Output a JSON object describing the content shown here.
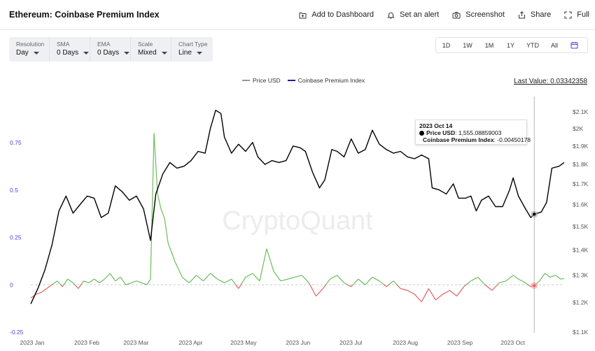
{
  "header": {
    "title": "Ethereum: Coinbase Premium Index",
    "actions": [
      {
        "label": "Add to Dashboard",
        "icon": "add-to-dashboard-icon"
      },
      {
        "label": "Set an alert",
        "icon": "bell-icon"
      },
      {
        "label": "Screenshot",
        "icon": "camera-icon"
      },
      {
        "label": "Share",
        "icon": "share-icon"
      },
      {
        "label": "Full",
        "icon": "fullscreen-icon"
      }
    ]
  },
  "controls": [
    {
      "label": "Resolution",
      "value": "Day"
    },
    {
      "label": "SMA",
      "value": "0 Days"
    },
    {
      "label": "EMA",
      "value": "0 Days"
    },
    {
      "label": "Scale",
      "value": "Mixed"
    },
    {
      "label": "Chart Type",
      "value": "Line"
    }
  ],
  "ranges": [
    "1D",
    "1W",
    "1M",
    "1Y",
    "YTD",
    "All"
  ],
  "last_value": "Last Value: 0.03342358",
  "watermark": "CryptoQuant",
  "tooltip": {
    "date": "2023 Oct 14",
    "price_label": "Price USD",
    "price_value": "1,555.08859003",
    "premium_label": "Coinbase Premium Index",
    "premium_value": "-0.00450178"
  },
  "colors": {
    "price": "#000000",
    "premium_legend": "#1a1aa6",
    "premium_positive": "#6dbb5a",
    "premium_negative": "#e06161",
    "left_axis": "#4c3fe0"
  },
  "chart_data": {
    "type": "line",
    "legend": [
      "Price USD",
      "Coinbase Premium Index"
    ],
    "legend_placement": "top-center",
    "grid": false,
    "y_left": {
      "ticks": [
        -0.25,
        0,
        0.25,
        0.5,
        0.75
      ],
      "tick_labels": [
        "-0.25",
        "0",
        "0.25",
        "0.5",
        "0.75"
      ],
      "range": [
        -0.25,
        1.0
      ]
    },
    "y_right": {
      "scale": "log",
      "ticks": [
        1100,
        1200,
        1300,
        1400,
        1500,
        1600,
        1700,
        1800,
        1900,
        2000,
        2100
      ],
      "tick_labels": [
        "$1.1K",
        "$1.2K",
        "$1.3K",
        "$1.4K",
        "$1.5K",
        "$1.6K",
        "$1.7K",
        "$1.8K",
        "$1.9K",
        "$2K",
        "$2.1K"
      ],
      "range": [
        1100,
        2150
      ]
    },
    "x_ticks": [
      "2023 Jan",
      "2023 Feb",
      "2023 Mar",
      "2023 Apr",
      "2023 May",
      "2023 Jun",
      "2023 Jul",
      "2023 Aug",
      "2023 Sep",
      "2023 Oct"
    ],
    "series": [
      {
        "name": "Price USD",
        "axis": "right",
        "points": [
          [
            "2023-01-01",
            1195
          ],
          [
            "2023-01-05",
            1250
          ],
          [
            "2023-01-09",
            1320
          ],
          [
            "2023-01-13",
            1420
          ],
          [
            "2023-01-17",
            1570
          ],
          [
            "2023-01-21",
            1640
          ],
          [
            "2023-01-25",
            1560
          ],
          [
            "2023-01-29",
            1600
          ],
          [
            "2023-02-02",
            1640
          ],
          [
            "2023-02-06",
            1630
          ],
          [
            "2023-02-10",
            1540
          ],
          [
            "2023-02-14",
            1560
          ],
          [
            "2023-02-18",
            1690
          ],
          [
            "2023-02-22",
            1660
          ],
          [
            "2023-02-26",
            1620
          ],
          [
            "2023-03-02",
            1640
          ],
          [
            "2023-03-06",
            1580
          ],
          [
            "2023-03-10",
            1440
          ],
          [
            "2023-03-13",
            1650
          ],
          [
            "2023-03-17",
            1750
          ],
          [
            "2023-03-21",
            1810
          ],
          [
            "2023-03-25",
            1780
          ],
          [
            "2023-03-29",
            1790
          ],
          [
            "2023-04-02",
            1820
          ],
          [
            "2023-04-06",
            1870
          ],
          [
            "2023-04-10",
            1860
          ],
          [
            "2023-04-13",
            2000
          ],
          [
            "2023-04-16",
            2110
          ],
          [
            "2023-04-19",
            2090
          ],
          [
            "2023-04-21",
            1950
          ],
          [
            "2023-04-25",
            1860
          ],
          [
            "2023-04-29",
            1910
          ],
          [
            "2023-05-03",
            1870
          ],
          [
            "2023-05-07",
            1920
          ],
          [
            "2023-05-10",
            1840
          ],
          [
            "2023-05-14",
            1800
          ],
          [
            "2023-05-18",
            1820
          ],
          [
            "2023-05-22",
            1810
          ],
          [
            "2023-05-26",
            1820
          ],
          [
            "2023-05-30",
            1900
          ],
          [
            "2023-06-03",
            1890
          ],
          [
            "2023-06-06",
            1870
          ],
          [
            "2023-06-10",
            1760
          ],
          [
            "2023-06-14",
            1680
          ],
          [
            "2023-06-17",
            1720
          ],
          [
            "2023-06-21",
            1880
          ],
          [
            "2023-06-24",
            1870
          ],
          [
            "2023-06-28",
            1840
          ],
          [
            "2023-07-02",
            1940
          ],
          [
            "2023-07-06",
            1860
          ],
          [
            "2023-07-10",
            1880
          ],
          [
            "2023-07-14",
            1990
          ],
          [
            "2023-07-18",
            1910
          ],
          [
            "2023-07-22",
            1880
          ],
          [
            "2023-07-26",
            1860
          ],
          [
            "2023-07-30",
            1870
          ],
          [
            "2023-08-03",
            1840
          ],
          [
            "2023-08-07",
            1830
          ],
          [
            "2023-08-11",
            1850
          ],
          [
            "2023-08-15",
            1830
          ],
          [
            "2023-08-17",
            1680
          ],
          [
            "2023-08-21",
            1670
          ],
          [
            "2023-08-25",
            1650
          ],
          [
            "2023-08-29",
            1700
          ],
          [
            "2023-09-01",
            1630
          ],
          [
            "2023-09-05",
            1630
          ],
          [
            "2023-09-08",
            1640
          ],
          [
            "2023-09-11",
            1570
          ],
          [
            "2023-09-14",
            1620
          ],
          [
            "2023-09-18",
            1640
          ],
          [
            "2023-09-22",
            1590
          ],
          [
            "2023-09-26",
            1590
          ],
          [
            "2023-09-30",
            1670
          ],
          [
            "2023-10-02",
            1730
          ],
          [
            "2023-10-05",
            1640
          ],
          [
            "2023-10-09",
            1580
          ],
          [
            "2023-10-12",
            1540
          ],
          [
            "2023-10-14",
            1555
          ],
          [
            "2023-10-18",
            1565
          ],
          [
            "2023-10-21",
            1610
          ],
          [
            "2023-10-24",
            1780
          ],
          [
            "2023-10-28",
            1790
          ],
          [
            "2023-10-31",
            1810
          ]
        ]
      },
      {
        "name": "Coinbase Premium Index",
        "axis": "left",
        "points": [
          [
            "2023-01-01",
            -0.07
          ],
          [
            "2023-01-04",
            -0.05
          ],
          [
            "2023-01-07",
            -0.04
          ],
          [
            "2023-01-10",
            -0.02
          ],
          [
            "2023-01-13",
            0.0
          ],
          [
            "2023-01-16",
            0.02
          ],
          [
            "2023-01-19",
            -0.01
          ],
          [
            "2023-01-22",
            0.03
          ],
          [
            "2023-01-25",
            0.01
          ],
          [
            "2023-01-28",
            -0.02
          ],
          [
            "2023-01-31",
            0.02
          ],
          [
            "2023-02-03",
            0.01
          ],
          [
            "2023-02-06",
            0.03
          ],
          [
            "2023-02-09",
            0.01
          ],
          [
            "2023-02-12",
            0.03
          ],
          [
            "2023-02-15",
            0.06
          ],
          [
            "2023-02-18",
            0.02
          ],
          [
            "2023-02-21",
            0.04
          ],
          [
            "2023-02-24",
            0.0
          ],
          [
            "2023-02-27",
            0.01
          ],
          [
            "2023-03-02",
            0.02
          ],
          [
            "2023-03-05",
            0.01
          ],
          [
            "2023-03-08",
            0.0
          ],
          [
            "2023-03-10",
            0.03
          ],
          [
            "2023-03-12",
            0.8
          ],
          [
            "2023-03-14",
            0.48
          ],
          [
            "2023-03-16",
            0.4
          ],
          [
            "2023-03-18",
            0.35
          ],
          [
            "2023-03-20",
            0.22
          ],
          [
            "2023-03-24",
            0.12
          ],
          [
            "2023-03-28",
            0.04
          ],
          [
            "2023-04-01",
            0.01
          ],
          [
            "2023-04-05",
            0.05
          ],
          [
            "2023-04-09",
            0.02
          ],
          [
            "2023-04-13",
            0.06
          ],
          [
            "2023-04-17",
            0.03
          ],
          [
            "2023-04-21",
            0.01
          ],
          [
            "2023-04-25",
            0.03
          ],
          [
            "2023-04-29",
            -0.02
          ],
          [
            "2023-05-03",
            0.04
          ],
          [
            "2023-05-07",
            0.06
          ],
          [
            "2023-05-11",
            0.02
          ],
          [
            "2023-05-15",
            0.19
          ],
          [
            "2023-05-19",
            0.07
          ],
          [
            "2023-05-23",
            0.02
          ],
          [
            "2023-05-27",
            0.03
          ],
          [
            "2023-05-31",
            0.04
          ],
          [
            "2023-06-04",
            0.05
          ],
          [
            "2023-06-08",
            0.01
          ],
          [
            "2023-06-12",
            -0.06
          ],
          [
            "2023-06-16",
            -0.02
          ],
          [
            "2023-06-20",
            0.03
          ],
          [
            "2023-06-24",
            0.05
          ],
          [
            "2023-06-28",
            0.01
          ],
          [
            "2023-07-02",
            -0.01
          ],
          [
            "2023-07-06",
            0.03
          ],
          [
            "2023-07-10",
            0.0
          ],
          [
            "2023-07-14",
            0.04
          ],
          [
            "2023-07-18",
            0.02
          ],
          [
            "2023-07-22",
            -0.01
          ],
          [
            "2023-07-26",
            0.02
          ],
          [
            "2023-07-30",
            -0.02
          ],
          [
            "2023-08-03",
            -0.03
          ],
          [
            "2023-08-07",
            -0.05
          ],
          [
            "2023-08-11",
            -0.09
          ],
          [
            "2023-08-15",
            -0.02
          ],
          [
            "2023-08-19",
            -0.08
          ],
          [
            "2023-08-23",
            -0.05
          ],
          [
            "2023-08-27",
            -0.03
          ],
          [
            "2023-08-31",
            -0.06
          ],
          [
            "2023-09-04",
            -0.01
          ],
          [
            "2023-09-08",
            0.02
          ],
          [
            "2023-09-12",
            0.04
          ],
          [
            "2023-09-16",
            0.0
          ],
          [
            "2023-09-20",
            -0.03
          ],
          [
            "2023-09-24",
            0.01
          ],
          [
            "2023-09-28",
            0.02
          ],
          [
            "2023-10-02",
            0.05
          ],
          [
            "2023-10-05",
            0.03
          ],
          [
            "2023-10-09",
            0.01
          ],
          [
            "2023-10-12",
            -0.01
          ],
          [
            "2023-10-14",
            -0.0045
          ],
          [
            "2023-10-17",
            0.02
          ],
          [
            "2023-10-20",
            0.06
          ],
          [
            "2023-10-23",
            0.04
          ],
          [
            "2023-10-26",
            0.05
          ],
          [
            "2023-10-29",
            0.03
          ],
          [
            "2023-10-31",
            0.033
          ]
        ]
      }
    ],
    "hover": {
      "date": "2023-10-14",
      "price": 1555.08859003,
      "premium": -0.00450178
    }
  }
}
